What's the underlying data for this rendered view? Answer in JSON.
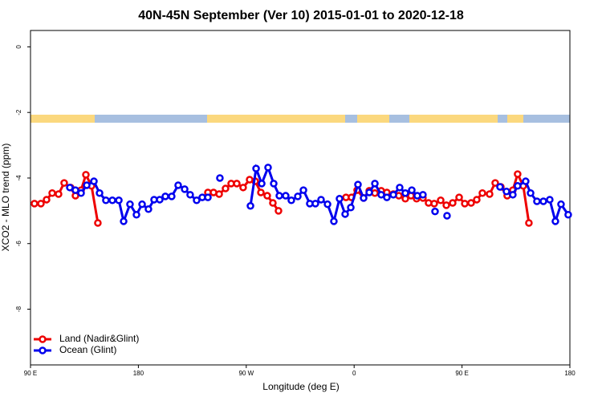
{
  "chart_data": {
    "type": "line",
    "title": "40N-45N September (Ver 10)   2015-01-01 to 2020-12-18",
    "xlabel": "Longitude (deg E)",
    "ylabel": "XCO2 - MLO trend (ppm)",
    "xlim": [
      90,
      540
    ],
    "xticks": [
      {
        "value": 90,
        "label": "90 E"
      },
      180,
      {
        "value": 270,
        "label": "90 W"
      },
      {
        "value": 360,
        "label": "0"
      },
      {
        "value": 450,
        "label": "90 E"
      },
      {
        "value": 540,
        "label": "180"
      }
    ],
    "ylim": [
      -9.7,
      0.5
    ],
    "yticks": [
      0,
      -2,
      -4,
      -6,
      -8
    ],
    "legend": "bottom-left",
    "series": [
      {
        "name": "Land (Nadir&Glint)",
        "color": "#ee0000",
        "x": [
          93.3,
          98.7,
          103.4,
          108.1,
          113.4,
          118.1,
          123.5,
          127.5,
          132.2,
          136.2,
          140.9,
          146.2,
          null,
          238,
          242.7,
          247.4,
          252.7,
          257.4,
          262.1,
          267.4,
          272.8,
          277.5,
          282.2,
          287.5,
          292.2,
          296.9,
          null,
          353.2,
          357.8,
          362.5,
          367.9,
          372.6,
          377.3,
          382.6,
          387.3,
          392.7,
          397.3,
          402.7,
          407.4,
          412.1,
          417.4,
          422.1,
          426.8,
          432.2,
          436.9,
          442.2,
          447.6,
          452.3,
          457.6,
          462.3,
          467,
          473,
          477.7,
          482.4,
          487.7,
          492.4,
          496.4,
          501.1,
          505.8
        ],
        "values": [
          -4.78,
          -4.78,
          -4.66,
          -4.46,
          -4.49,
          -4.15,
          -4.29,
          -4.54,
          -4.37,
          -3.9,
          -4.24,
          -5.37,
          null,
          -4.44,
          -4.44,
          -4.49,
          -4.32,
          -4.17,
          -4.17,
          -4.29,
          -4.05,
          -4.1,
          -4.44,
          -4.54,
          -4.76,
          -5.0,
          null,
          -4.59,
          -4.59,
          -4.37,
          -4.61,
          -4.39,
          -4.46,
          -4.39,
          -4.44,
          -4.49,
          -4.54,
          -4.63,
          -4.54,
          -4.63,
          -4.61,
          -4.76,
          -4.78,
          -4.68,
          -4.83,
          -4.76,
          -4.59,
          -4.78,
          -4.76,
          -4.66,
          -4.46,
          -4.49,
          -4.15,
          -4.27,
          -4.54,
          -4.37,
          -3.88,
          -4.24,
          -5.37
        ]
      },
      {
        "name": "Ocean (Glint)",
        "color": "#0000ee",
        "x": [
          122.8,
          127.5,
          132.2,
          136.9,
          142.9,
          147.6,
          152.9,
          158.3,
          163.7,
          167.7,
          173,
          178.4,
          183.1,
          188.4,
          193.1,
          197.8,
          202.5,
          207.8,
          213.2,
          218.6,
          223.2,
          228.6,
          233.3,
          238,
          null,
          248,
          null,
          273.5,
          278.2,
          282.9,
          288.2,
          292.9,
          297.6,
          302.9,
          307.6,
          313,
          317.7,
          323,
          327.7,
          332.4,
          337.8,
          343.1,
          347.8,
          352.5,
          357.2,
          363.2,
          367.9,
          372.6,
          377.3,
          382.6,
          387.3,
          392.7,
          398,
          402.7,
          408.1,
          412.7,
          417.4,
          null,
          427.5,
          null,
          437.5,
          null,
          481.7,
          487.1,
          492.4,
          496.4,
          503.1,
          507.2,
          512.5,
          517.9,
          523.2,
          527.9,
          532.6,
          538.6
        ],
        "values": [
          -4.29,
          -4.37,
          -4.46,
          -4.22,
          -4.1,
          -4.46,
          -4.68,
          -4.68,
          -4.68,
          -5.32,
          -4.8,
          -5.12,
          -4.8,
          -4.95,
          -4.66,
          -4.66,
          -4.56,
          -4.56,
          -4.22,
          -4.34,
          -4.51,
          -4.68,
          -4.59,
          -4.59,
          null,
          -4.0,
          null,
          -4.85,
          -3.71,
          -4.17,
          -3.68,
          -4.17,
          -4.54,
          -4.54,
          -4.68,
          -4.56,
          -4.37,
          -4.78,
          -4.78,
          -4.66,
          -4.8,
          -5.32,
          -4.63,
          -5.1,
          -4.9,
          -4.2,
          -4.61,
          -4.44,
          -4.17,
          -4.51,
          -4.59,
          -4.51,
          -4.29,
          -4.46,
          -4.37,
          -4.54,
          -4.51,
          null,
          -5.02,
          null,
          -5.15,
          null,
          -4.27,
          -4.41,
          -4.51,
          -4.24,
          -4.1,
          -4.46,
          -4.71,
          -4.71,
          -4.66,
          -5.32,
          -4.8,
          -5.12
        ]
      }
    ]
  }
}
